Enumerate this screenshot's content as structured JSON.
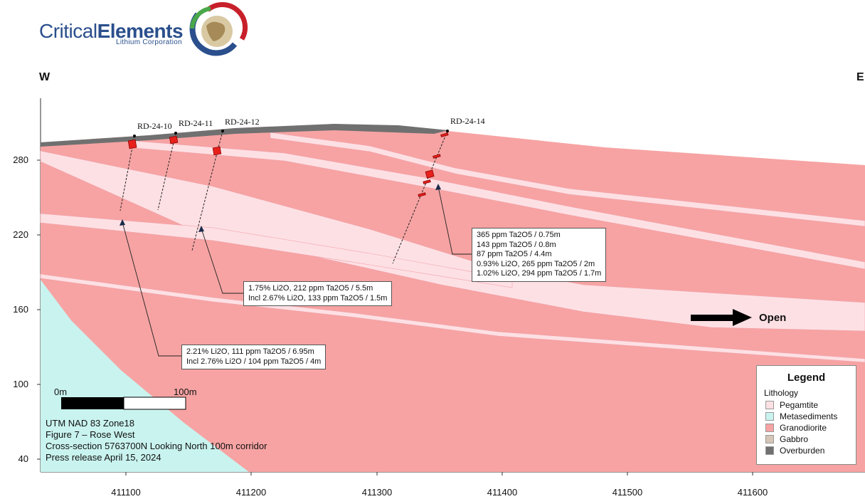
{
  "logo": {
    "word1": "Critical",
    "word2": "Elements",
    "sub": "Lithium Corporation"
  },
  "compass": {
    "west": "W",
    "east": "E"
  },
  "y_axis": {
    "ticks": [
      "280",
      "220",
      "160",
      "100",
      "40"
    ]
  },
  "x_axis": {
    "ticks": [
      "411100",
      "411200",
      "411300",
      "411400",
      "411500",
      "411600"
    ]
  },
  "holes": {
    "h10": "RD-24-10",
    "h11": "RD-24-11",
    "h12": "RD-24-12",
    "h14": "RD-24-14"
  },
  "callout_left": {
    "line1": "2.21% Li2O, 111 ppm Ta2O5 / 6.95m",
    "line2": "Incl 2.76% Li2O / 104 ppm Ta2O5 / 4m"
  },
  "callout_mid": {
    "line1": "1.75% Li2O, 212 ppm Ta2O5 / 5.5m",
    "line2": "Incl 2.67% Li2O, 133 ppm Ta2O5 / 1.5m"
  },
  "callout_right": {
    "line1": "365 ppm Ta2O5 / 0.75m",
    "line2": "143 ppm Ta2O5 / 0.8m",
    "line3": "87 ppm Ta2O5 / 4.4m",
    "line4": "0.93% Li2O, 265 ppm Ta2O5 / 2m",
    "line5": "1.02% Li2O, 294 ppm Ta2O5 / 1.7m"
  },
  "scale": {
    "start": "0m",
    "end": "100m"
  },
  "open_label": "Open",
  "info": {
    "line1": "UTM NAD 83 Zone18",
    "line2": "Figure 7 – Rose West",
    "line3": "Cross-section 5763700N Looking North 100m corridor",
    "line4": "Press release April 15, 2024"
  },
  "legend": {
    "title": "Legend",
    "subtitle": "Lithology",
    "items": [
      {
        "label": "Pegamtite",
        "color": "#fde0e4"
      },
      {
        "label": "Metasediments",
        "color": "#c9f3ef"
      },
      {
        "label": "Granodiorite",
        "color": "#f7a3a3"
      },
      {
        "label": "Gabbro",
        "color": "#d6c6b8"
      },
      {
        "label": "Overburden",
        "color": "#707070"
      }
    ]
  },
  "colors": {
    "granodiorite": "#f7a3a3",
    "pegmatite": "#fde0e4",
    "metasediments": "#c9f3ef",
    "overburden": "#707070",
    "intercept": "#e8201c",
    "logo_blue": "#2a4f8c"
  }
}
